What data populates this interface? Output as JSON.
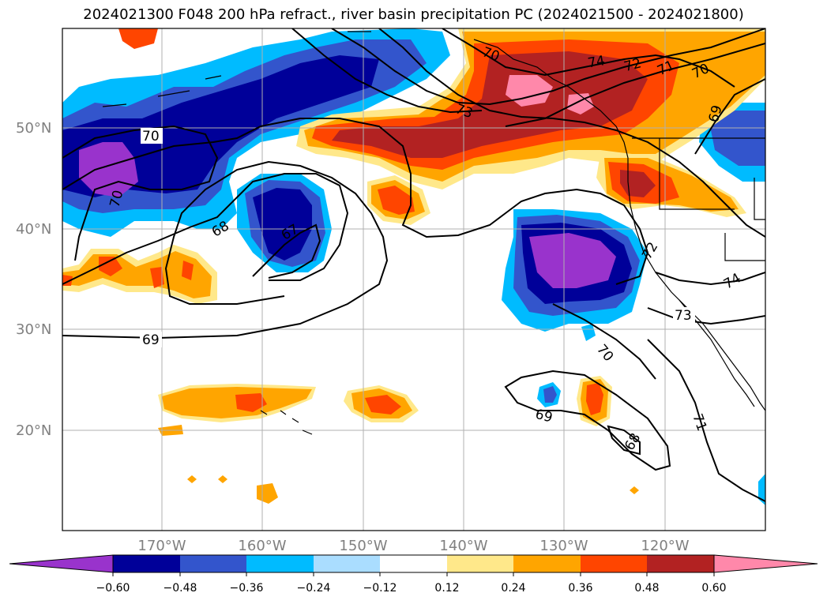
{
  "title": "2024021300 F048 200 hPa refract., river basin precipitation PC (2024021500 - 2024021800)",
  "lat_labels": [
    "50°N",
    "40°N",
    "30°N",
    "20°N"
  ],
  "lon_labels": [
    "170°W",
    "160°W",
    "150°W",
    "140°W",
    "130°W",
    "120°W"
  ],
  "colorbar": {
    "ticks": [
      "−0.60",
      "−0.48",
      "−0.36",
      "−0.24",
      "−0.12",
      "0.12",
      "0.24",
      "0.36",
      "0.48",
      "0.60"
    ],
    "colors": [
      "#9933cc",
      "#000099",
      "#3355cc",
      "#00bbff",
      "#aaddff",
      "#ffffff",
      "#ffe88a",
      "#ffa500",
      "#ff4500",
      "#b22222",
      "#ff88aa",
      "#ff88aa"
    ]
  },
  "contour_labels": [
    "70",
    "70",
    "68",
    "67",
    "69",
    "73",
    "74",
    "72",
    "71",
    "70",
    "69",
    "70",
    "74",
    "72",
    "73",
    "70",
    "69",
    "68",
    "71"
  ]
}
